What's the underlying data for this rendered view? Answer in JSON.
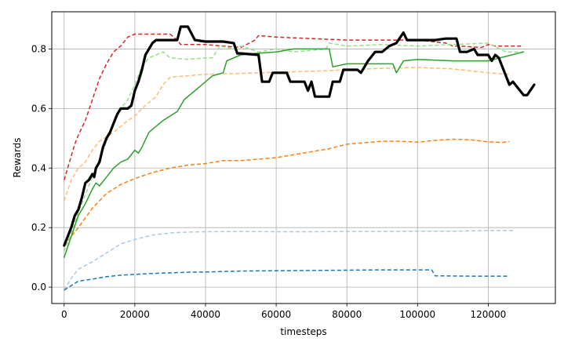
{
  "chart_data": {
    "type": "line",
    "title": "",
    "xlabel": "timesteps",
    "ylabel": "Rewards",
    "xlim": [
      -3500,
      139000
    ],
    "ylim": [
      -0.055,
      0.925
    ],
    "xticks": [
      0,
      20000,
      40000,
      60000,
      80000,
      100000,
      120000
    ],
    "xtick_labels": [
      "0",
      "20000",
      "40000",
      "60000",
      "80000",
      "100000",
      "120000"
    ],
    "yticks": [
      0.0,
      0.2,
      0.4,
      0.6,
      0.8
    ],
    "ytick_labels": [
      "0.0",
      "0.2",
      "0.4",
      "0.6",
      "0.8"
    ],
    "grid": true,
    "legend": "none",
    "series": [
      {
        "color": "#aec7e8",
        "dash": "dashed",
        "width": 1.5,
        "x": [
          0,
          2000,
          4000,
          8000,
          12000,
          16000,
          20000,
          25000,
          30000,
          35000,
          40000,
          50000,
          60000,
          70000,
          80000,
          90000,
          100000,
          110000,
          120000,
          127000
        ],
        "y": [
          -0.01,
          0.03,
          0.06,
          0.085,
          0.115,
          0.145,
          0.16,
          0.175,
          0.182,
          0.185,
          0.186,
          0.187,
          0.186,
          0.186,
          0.187,
          0.187,
          0.188,
          0.188,
          0.19,
          0.19
        ]
      },
      {
        "color": "#1f77b4",
        "dash": "dashed",
        "width": 1.5,
        "x": [
          0,
          2000,
          4000,
          8000,
          12000,
          16000,
          20000,
          25000,
          30000,
          35000,
          40000,
          50000,
          60000,
          70000,
          80000,
          90000,
          100000,
          104000,
          105000,
          115000,
          120000,
          126000
        ],
        "y": [
          -0.01,
          0.005,
          0.02,
          0.027,
          0.035,
          0.04,
          0.043,
          0.046,
          0.048,
          0.05,
          0.051,
          0.054,
          0.055,
          0.056,
          0.057,
          0.058,
          0.058,
          0.058,
          0.038,
          0.037,
          0.037,
          0.037
        ]
      },
      {
        "color": "#ff7f0e",
        "dash": "dashed",
        "width": 1.5,
        "x": [
          0,
          2000,
          4000,
          8000,
          12000,
          16000,
          20000,
          25000,
          30000,
          35000,
          40000,
          45000,
          50000,
          55000,
          60000,
          65000,
          70000,
          75000,
          80000,
          85000,
          90000,
          95000,
          100000,
          105000,
          110000,
          115000,
          120000,
          124000,
          126000
        ],
        "y": [
          0.14,
          0.17,
          0.2,
          0.265,
          0.315,
          0.345,
          0.365,
          0.385,
          0.4,
          0.41,
          0.415,
          0.425,
          0.425,
          0.43,
          0.435,
          0.445,
          0.455,
          0.465,
          0.48,
          0.485,
          0.49,
          0.49,
          0.487,
          0.493,
          0.497,
          0.495,
          0.488,
          0.486,
          0.489
        ]
      },
      {
        "color": "#ffbb78",
        "dash": "dashed",
        "width": 1.5,
        "x": [
          0,
          2000,
          4000,
          6000,
          8000,
          10000,
          14000,
          18000,
          20000,
          22000,
          24000,
          26000,
          28000,
          30000,
          35000,
          40000,
          50000,
          60000,
          70000,
          80000,
          90000,
          100000,
          110000,
          120000,
          126000
        ],
        "y": [
          0.29,
          0.36,
          0.4,
          0.42,
          0.46,
          0.49,
          0.52,
          0.56,
          0.575,
          0.6,
          0.62,
          0.64,
          0.68,
          0.705,
          0.71,
          0.715,
          0.718,
          0.722,
          0.725,
          0.73,
          0.735,
          0.738,
          0.733,
          0.72,
          0.715
        ]
      },
      {
        "color": "#d62728",
        "dash": "dashed",
        "width": 1.5,
        "x": [
          0,
          1000,
          2000,
          3000,
          4000,
          6000,
          8000,
          10000,
          12000,
          14000,
          16000,
          18000,
          20000,
          22000,
          25000,
          30000,
          32000,
          33000,
          40000,
          45000,
          50000,
          54000,
          55000,
          60000,
          70000,
          80000,
          90000,
          100000,
          108000,
          110000,
          112000,
          118000,
          120000,
          122000,
          130000
        ],
        "y": [
          0.36,
          0.4,
          0.44,
          0.48,
          0.51,
          0.56,
          0.63,
          0.7,
          0.75,
          0.79,
          0.81,
          0.84,
          0.85,
          0.85,
          0.85,
          0.85,
          0.83,
          0.815,
          0.815,
          0.81,
          0.805,
          0.83,
          0.845,
          0.84,
          0.835,
          0.83,
          0.83,
          0.83,
          0.82,
          0.81,
          0.81,
          0.805,
          0.815,
          0.81,
          0.81
        ]
      },
      {
        "color": "#98df8a",
        "dash": "dashed",
        "width": 1.5,
        "x": [
          0,
          2000,
          4000,
          6000,
          8000,
          10000,
          12000,
          14000,
          16000,
          18000,
          20000,
          22000,
          24000,
          26000,
          28000,
          30000,
          35000,
          40000,
          42000,
          44000,
          48000,
          50000,
          55000,
          60000,
          65000,
          70000,
          74000,
          75000,
          80000,
          90000,
          100000,
          110000,
          120000,
          125000,
          130000
        ],
        "y": [
          0.12,
          0.18,
          0.25,
          0.31,
          0.37,
          0.43,
          0.49,
          0.55,
          0.6,
          0.63,
          0.68,
          0.74,
          0.77,
          0.78,
          0.79,
          0.77,
          0.765,
          0.77,
          0.77,
          0.81,
          0.8,
          0.81,
          0.79,
          0.8,
          0.79,
          0.795,
          0.8,
          0.82,
          0.81,
          0.815,
          0.81,
          0.815,
          0.82,
          0.79,
          0.79
        ]
      },
      {
        "color": "#2ca02c",
        "dash": "solid",
        "width": 1.5,
        "x": [
          0,
          2000,
          4000,
          6000,
          8000,
          9000,
          10000,
          12000,
          14000,
          16000,
          18000,
          20000,
          21000,
          22000,
          24000,
          28000,
          32000,
          34000,
          38000,
          42000,
          45000,
          46000,
          50000,
          54000,
          60000,
          65000,
          70000,
          75000,
          76000,
          80000,
          90000,
          93000,
          94000,
          96000,
          100000,
          110000,
          120000,
          125000,
          130000
        ],
        "y": [
          0.1,
          0.17,
          0.24,
          0.28,
          0.33,
          0.35,
          0.34,
          0.37,
          0.4,
          0.42,
          0.43,
          0.46,
          0.45,
          0.47,
          0.52,
          0.56,
          0.59,
          0.63,
          0.67,
          0.71,
          0.72,
          0.76,
          0.78,
          0.785,
          0.79,
          0.8,
          0.8,
          0.8,
          0.74,
          0.75,
          0.75,
          0.75,
          0.72,
          0.76,
          0.765,
          0.76,
          0.76,
          0.775,
          0.79
        ]
      },
      {
        "color": "#000000",
        "dash": "solid",
        "width": 3.2,
        "x": [
          0,
          1000,
          2000,
          3000,
          4000,
          5000,
          6000,
          7000,
          8000,
          8500,
          9000,
          10000,
          11000,
          12000,
          13000,
          14000,
          15000,
          16000,
          17000,
          18000,
          19000,
          20000,
          21000,
          22000,
          23000,
          24000,
          25000,
          26000,
          28000,
          30000,
          32000,
          33000,
          35000,
          37000,
          40000,
          45000,
          48000,
          49000,
          50000,
          55000,
          56000,
          58000,
          59000,
          63000,
          64000,
          68000,
          69000,
          70000,
          71000,
          75000,
          76000,
          78000,
          79000,
          83000,
          84000,
          86000,
          88000,
          90000,
          92000,
          94000,
          96000,
          97000,
          100000,
          105000,
          108000,
          111000,
          112000,
          114000,
          116000,
          117000,
          120000,
          121000,
          122000,
          123000,
          126000,
          127000,
          130000,
          131000,
          133000
        ],
        "y": [
          0.14,
          0.17,
          0.2,
          0.24,
          0.26,
          0.3,
          0.35,
          0.36,
          0.38,
          0.37,
          0.4,
          0.42,
          0.47,
          0.5,
          0.52,
          0.55,
          0.58,
          0.6,
          0.6,
          0.6,
          0.61,
          0.66,
          0.69,
          0.73,
          0.78,
          0.8,
          0.82,
          0.83,
          0.83,
          0.83,
          0.83,
          0.875,
          0.875,
          0.83,
          0.825,
          0.825,
          0.82,
          0.785,
          0.785,
          0.78,
          0.69,
          0.69,
          0.72,
          0.72,
          0.69,
          0.69,
          0.66,
          0.69,
          0.64,
          0.64,
          0.69,
          0.69,
          0.73,
          0.73,
          0.72,
          0.76,
          0.79,
          0.79,
          0.81,
          0.82,
          0.855,
          0.83,
          0.83,
          0.83,
          0.835,
          0.835,
          0.79,
          0.79,
          0.8,
          0.78,
          0.78,
          0.76,
          0.78,
          0.77,
          0.68,
          0.69,
          0.645,
          0.645,
          0.68
        ]
      }
    ]
  }
}
